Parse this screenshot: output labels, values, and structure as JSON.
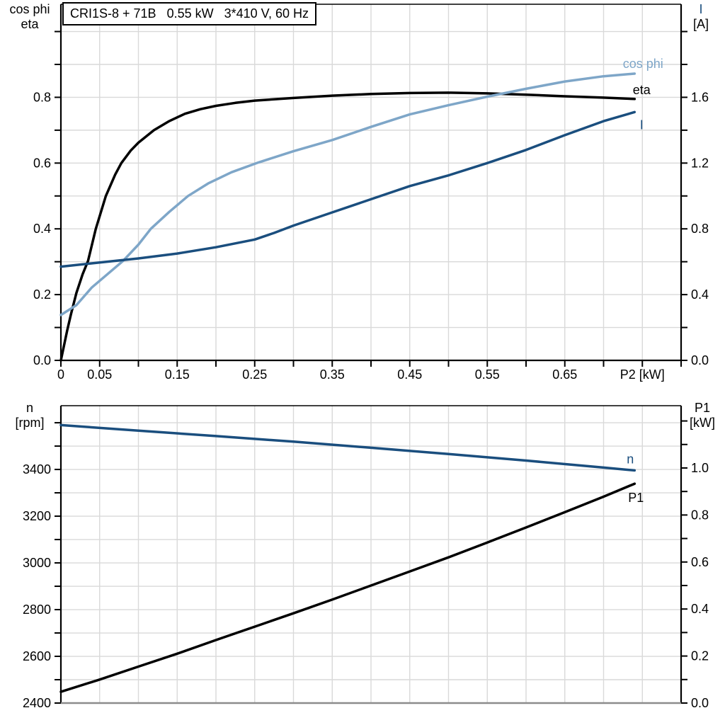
{
  "colors": {
    "black": "#000000",
    "dark_blue": "#1a4e7e",
    "light_blue": "#7ea6c8",
    "grid": "#d9d9d9",
    "baseline_gray": "#8c8c8c",
    "background": "#ffffff"
  },
  "chart_data": [
    {
      "type": "line",
      "title": "CRI1S-8 + 71B   0.55 kW   3*410 V, 60 Hz",
      "x_axis": {
        "min": 0,
        "max": 0.8,
        "tick_step": 0.05,
        "grid_step": 0.05,
        "tick_labels": [
          {
            "v": 0,
            "t": "0"
          },
          {
            "v": 0.05,
            "t": "0.05"
          },
          {
            "v": 0.15,
            "t": "0.15"
          },
          {
            "v": 0.25,
            "t": "0.25"
          },
          {
            "v": 0.35,
            "t": "0.35"
          },
          {
            "v": 0.45,
            "t": "0.45"
          },
          {
            "v": 0.55,
            "t": "0.55"
          },
          {
            "v": 0.65,
            "t": "0.65"
          }
        ],
        "unit_label": {
          "v": 0.75,
          "t": "P2 [kW]"
        }
      },
      "y_left": {
        "name": "cos phi",
        "name2": "eta",
        "min": 0,
        "max": 1.083,
        "tick_step": 0.1,
        "grid_step": 0.1,
        "tick_labels": [
          {
            "v": 0.0,
            "t": "0.0"
          },
          {
            "v": 0.2,
            "t": "0.2"
          },
          {
            "v": 0.4,
            "t": "0.4"
          },
          {
            "v": 0.6,
            "t": "0.6"
          },
          {
            "v": 0.8,
            "t": "0.8"
          }
        ]
      },
      "y_right": {
        "name": "I",
        "name2": "[A]",
        "min": 0,
        "max": 2.166,
        "tick_step": 0.2,
        "tick_labels": [
          {
            "v": 0.0,
            "t": "0.0"
          },
          {
            "v": 0.4,
            "t": "0.4"
          },
          {
            "v": 0.8,
            "t": "0.8"
          },
          {
            "v": 1.2,
            "t": "1.2"
          },
          {
            "v": 1.6,
            "t": "1.6"
          }
        ]
      },
      "series": [
        {
          "name": "eta",
          "axis": "left",
          "color": "#000000",
          "label_offset": {
            "dx": 10,
            "dy": -7
          },
          "points": [
            [
              0,
              0
            ],
            [
              0.004,
              0.045
            ],
            [
              0.008,
              0.09
            ],
            [
              0.013,
              0.14
            ],
            [
              0.02,
              0.205
            ],
            [
              0.028,
              0.262
            ],
            [
              0.035,
              0.302
            ],
            [
              0.045,
              0.4
            ],
            [
              0.058,
              0.5
            ],
            [
              0.07,
              0.565
            ],
            [
              0.078,
              0.6
            ],
            [
              0.09,
              0.638
            ],
            [
              0.1,
              0.662
            ],
            [
              0.12,
              0.7
            ],
            [
              0.14,
              0.728
            ],
            [
              0.16,
              0.75
            ],
            [
              0.18,
              0.764
            ],
            [
              0.2,
              0.774
            ],
            [
              0.225,
              0.783
            ],
            [
              0.25,
              0.79
            ],
            [
              0.3,
              0.798
            ],
            [
              0.35,
              0.805
            ],
            [
              0.4,
              0.81
            ],
            [
              0.45,
              0.813
            ],
            [
              0.5,
              0.814
            ],
            [
              0.55,
              0.812
            ],
            [
              0.6,
              0.808
            ],
            [
              0.65,
              0.803
            ],
            [
              0.7,
              0.799
            ],
            [
              0.74,
              0.795
            ]
          ]
        },
        {
          "name": "cos phi",
          "axis": "left",
          "color": "#7ea6c8",
          "label_offset": {
            "dx": 12,
            "dy": -8
          },
          "points": [
            [
              0,
              0.138
            ],
            [
              0.02,
              0.168
            ],
            [
              0.04,
              0.222
            ],
            [
              0.06,
              0.262
            ],
            [
              0.08,
              0.302
            ],
            [
              0.1,
              0.352
            ],
            [
              0.116,
              0.4
            ],
            [
              0.14,
              0.452
            ],
            [
              0.164,
              0.5
            ],
            [
              0.19,
              0.538
            ],
            [
              0.22,
              0.572
            ],
            [
              0.255,
              0.602
            ],
            [
              0.3,
              0.636
            ],
            [
              0.35,
              0.67
            ],
            [
              0.4,
              0.71
            ],
            [
              0.45,
              0.748
            ],
            [
              0.5,
              0.776
            ],
            [
              0.55,
              0.802
            ],
            [
              0.6,
              0.826
            ],
            [
              0.65,
              0.848
            ],
            [
              0.7,
              0.864
            ],
            [
              0.74,
              0.872
            ]
          ]
        },
        {
          "name": "I",
          "axis": "right",
          "color": "#1a4e7e",
          "label_offset": {
            "dx": 10,
            "dy": 24
          },
          "points": [
            [
              0,
              0.57
            ],
            [
              0.05,
              0.595
            ],
            [
              0.1,
              0.62
            ],
            [
              0.15,
              0.65
            ],
            [
              0.2,
              0.688
            ],
            [
              0.25,
              0.735
            ],
            [
              0.275,
              0.775
            ],
            [
              0.3,
              0.82
            ],
            [
              0.35,
              0.9
            ],
            [
              0.4,
              0.98
            ],
            [
              0.45,
              1.06
            ],
            [
              0.5,
              1.125
            ],
            [
              0.55,
              1.2
            ],
            [
              0.6,
              1.28
            ],
            [
              0.65,
              1.37
            ],
            [
              0.7,
              1.455
            ],
            [
              0.74,
              1.51
            ]
          ]
        }
      ]
    },
    {
      "type": "line",
      "title": "",
      "x_axis": {
        "min": 0,
        "max": 0.8,
        "tick_step": 0,
        "grid_step": 0.05,
        "tick_labels": [],
        "unit_label": null
      },
      "y_left": {
        "name": "n",
        "name2": "[rpm]",
        "min": 2400,
        "max": 3673,
        "tick_step": 100,
        "grid_step": 100,
        "tick_labels": [
          {
            "v": 2400,
            "t": "2400"
          },
          {
            "v": 2600,
            "t": "2600"
          },
          {
            "v": 2800,
            "t": "2800"
          },
          {
            "v": 3000,
            "t": "3000"
          },
          {
            "v": 3200,
            "t": "3200"
          },
          {
            "v": 3400,
            "t": "3400"
          }
        ]
      },
      "y_right": {
        "name": "P1",
        "name2": "[kW]",
        "min": 0,
        "max": 1.265,
        "tick_step": 0.1,
        "tick_labels": [
          {
            "v": 0.0,
            "t": "0.0"
          },
          {
            "v": 0.2,
            "t": "0.2"
          },
          {
            "v": 0.4,
            "t": "0.4"
          },
          {
            "v": 0.6,
            "t": "0.6"
          },
          {
            "v": 0.8,
            "t": "0.8"
          },
          {
            "v": 1.0,
            "t": "1.0"
          }
        ]
      },
      "series": [
        {
          "name": "n",
          "axis": "left",
          "color": "#1a4e7e",
          "label_offset": {
            "dx": -6,
            "dy": -10
          },
          "points": [
            [
              0,
              3590
            ],
            [
              0.1,
              3566
            ],
            [
              0.2,
              3543
            ],
            [
              0.3,
              3519
            ],
            [
              0.4,
              3493
            ],
            [
              0.5,
              3466
            ],
            [
              0.6,
              3438
            ],
            [
              0.7,
              3408
            ],
            [
              0.74,
              3396
            ]
          ]
        },
        {
          "name": "P1",
          "axis": "right",
          "color": "#000000",
          "label_offset": {
            "dx": 2,
            "dy": 26
          },
          "points": [
            [
              0,
              0.048
            ],
            [
              0.05,
              0.1
            ],
            [
              0.1,
              0.155
            ],
            [
              0.15,
              0.21
            ],
            [
              0.2,
              0.268
            ],
            [
              0.25,
              0.325
            ],
            [
              0.3,
              0.382
            ],
            [
              0.35,
              0.44
            ],
            [
              0.4,
              0.5
            ],
            [
              0.45,
              0.56
            ],
            [
              0.5,
              0.62
            ],
            [
              0.55,
              0.683
            ],
            [
              0.6,
              0.747
            ],
            [
              0.65,
              0.812
            ],
            [
              0.7,
              0.878
            ],
            [
              0.74,
              0.933
            ]
          ]
        }
      ]
    }
  ]
}
